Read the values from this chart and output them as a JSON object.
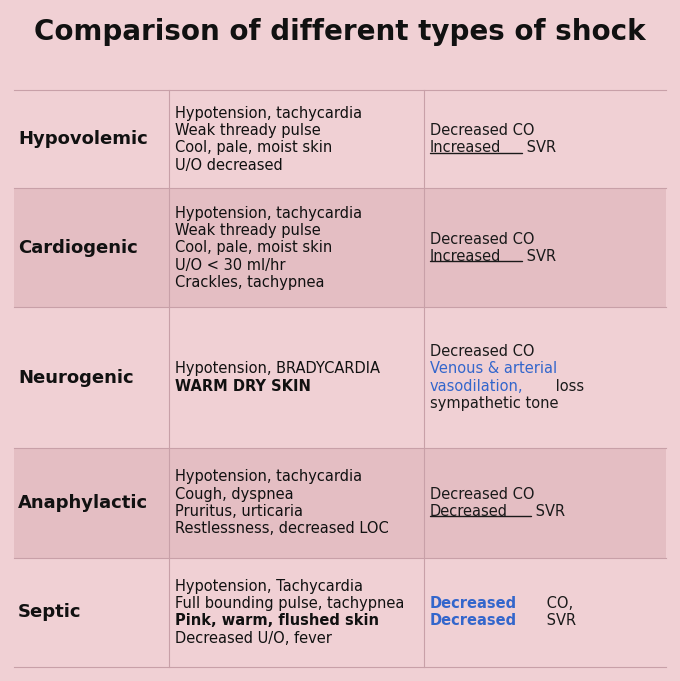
{
  "title": "Comparison of different types of shock",
  "background_color": "#f0d0d4",
  "row_alt_color": "#e4bec3",
  "separator_color": "#c8a0a8",
  "title_fontsize": 20,
  "type_fontsize": 13,
  "content_fontsize": 10.5,
  "figsize": [
    6.8,
    6.81
  ],
  "dpi": 100,
  "rows": [
    {
      "type": "Hypovolemic",
      "alt": false,
      "symptoms": [
        {
          "text": "Hypotension, tachycardia",
          "bold": false
        },
        {
          "text": "Weak thready pulse",
          "bold": false
        },
        {
          "text": "Cool, pale, moist skin",
          "bold": false
        },
        {
          "text": "U/O decreased",
          "bold": false
        }
      ],
      "hemo_lines": [
        [
          {
            "text": "Decreased CO",
            "bold": false,
            "underline": false,
            "color": "#1a1a1a"
          }
        ],
        [
          {
            "text": "Increased",
            "bold": false,
            "underline": true,
            "color": "#1a1a1a"
          },
          {
            "text": " SVR",
            "bold": false,
            "underline": false,
            "color": "#1a1a1a"
          }
        ]
      ]
    },
    {
      "type": "Cardiogenic",
      "alt": true,
      "symptoms": [
        {
          "text": "Hypotension, tachycardia",
          "bold": false
        },
        {
          "text": "Weak thready pulse",
          "bold": false
        },
        {
          "text": "Cool, pale, moist skin",
          "bold": false
        },
        {
          "text": "U/O < 30 ml/hr",
          "bold": false
        },
        {
          "text": "Crackles, tachypnea",
          "bold": false
        }
      ],
      "hemo_lines": [
        [
          {
            "text": "Decreased CO",
            "bold": false,
            "underline": false,
            "color": "#1a1a1a"
          }
        ],
        [
          {
            "text": "Increased",
            "bold": false,
            "underline": true,
            "color": "#1a1a1a"
          },
          {
            "text": " SVR",
            "bold": false,
            "underline": false,
            "color": "#1a1a1a"
          }
        ]
      ]
    },
    {
      "type": "Neurogenic",
      "alt": false,
      "symptoms": [
        {
          "text": "Hypotension, BRADYCARDIA",
          "bold": false
        },
        {
          "text": "WARM DRY SKIN",
          "bold": true
        }
      ],
      "hemo_lines": [
        [
          {
            "text": "Decreased CO",
            "bold": false,
            "underline": false,
            "color": "#1a1a1a"
          }
        ],
        [
          {
            "text": "Venous & arterial",
            "bold": false,
            "underline": false,
            "color": "#3366cc"
          }
        ],
        [
          {
            "text": "vasodilation,",
            "bold": false,
            "underline": false,
            "color": "#3366cc"
          },
          {
            "text": " loss",
            "bold": false,
            "underline": false,
            "color": "#1a1a1a"
          }
        ],
        [
          {
            "text": "sympathetic tone",
            "bold": false,
            "underline": false,
            "color": "#1a1a1a"
          }
        ]
      ]
    },
    {
      "type": "Anaphylactic",
      "alt": true,
      "symptoms": [
        {
          "text": "Hypotension, tachycardia",
          "bold": false
        },
        {
          "text": "Cough, dyspnea",
          "bold": false
        },
        {
          "text": "Pruritus, urticaria",
          "bold": false
        },
        {
          "text": "Restlessness, decreased LOC",
          "bold": false
        }
      ],
      "hemo_lines": [
        [
          {
            "text": "Decreased CO",
            "bold": false,
            "underline": false,
            "color": "#1a1a1a"
          }
        ],
        [
          {
            "text": "Decreased",
            "bold": false,
            "underline": true,
            "color": "#1a1a1a"
          },
          {
            "text": " SVR",
            "bold": false,
            "underline": false,
            "color": "#1a1a1a"
          }
        ]
      ]
    },
    {
      "type": "Septic",
      "alt": false,
      "symptoms": [
        {
          "text": "Hypotension, Tachycardia",
          "bold": false
        },
        {
          "text": "Full bounding pulse, tachypnea",
          "bold": false
        },
        {
          "text": "Pink, warm, flushed skin",
          "bold": true
        },
        {
          "text": "Decreased U/O, fever",
          "bold": false
        }
      ],
      "hemo_lines": [
        [
          {
            "text": "Decreased",
            "bold": true,
            "underline": false,
            "color": "#3366cc"
          },
          {
            "text": " CO,",
            "bold": false,
            "underline": false,
            "color": "#1a1a1a"
          }
        ],
        [
          {
            "text": "Decreased",
            "bold": true,
            "underline": false,
            "color": "#3366cc"
          },
          {
            "text": " SVR",
            "bold": false,
            "underline": false,
            "color": "#1a1a1a"
          }
        ]
      ]
    }
  ]
}
